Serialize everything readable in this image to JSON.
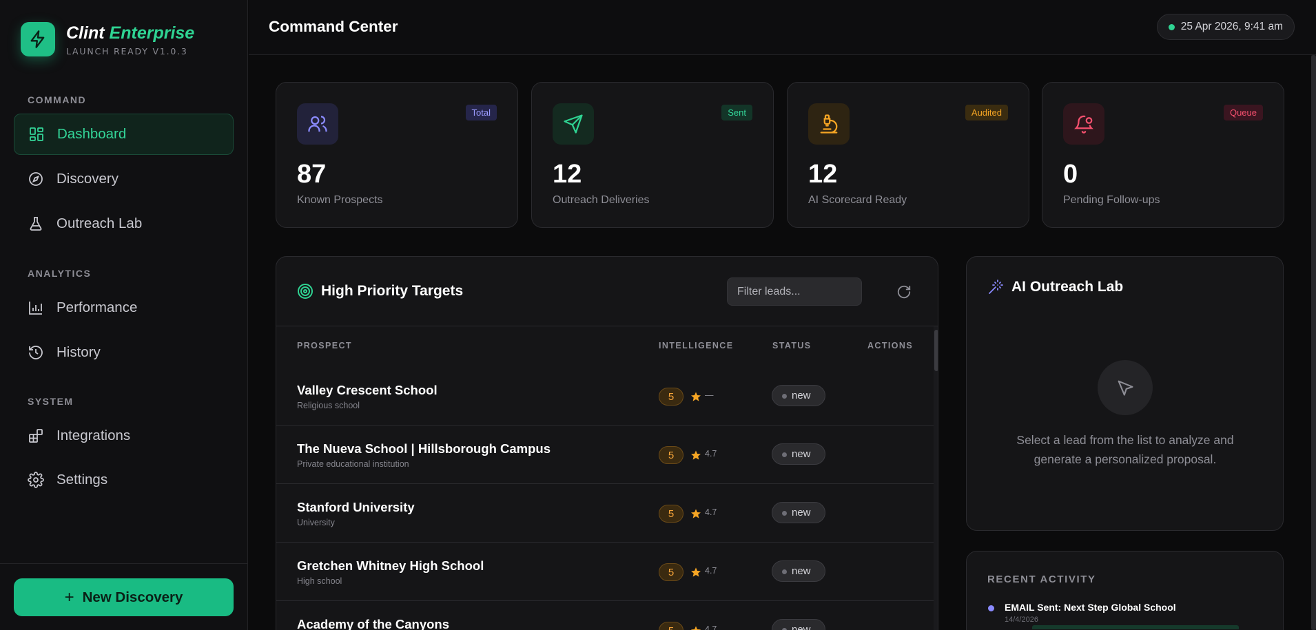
{
  "brand": {
    "name": "Clint",
    "edition": "Enterprise",
    "subtitle": "LAUNCH READY V1.0.3"
  },
  "nav": {
    "sections": [
      {
        "title": "COMMAND",
        "items": [
          {
            "label": "Dashboard",
            "icon": "dashboard-icon",
            "active": true
          },
          {
            "label": "Discovery",
            "icon": "compass-icon"
          },
          {
            "label": "Outreach Lab",
            "icon": "flask-icon"
          }
        ]
      },
      {
        "title": "ANALYTICS",
        "items": [
          {
            "label": "Performance",
            "icon": "bar-chart-icon"
          },
          {
            "label": "History",
            "icon": "history-icon"
          }
        ]
      },
      {
        "title": "SYSTEM",
        "items": [
          {
            "label": "Integrations",
            "icon": "blocks-icon"
          },
          {
            "label": "Settings",
            "icon": "gear-icon"
          }
        ]
      }
    ],
    "new_discovery_label": "New Discovery"
  },
  "header": {
    "title": "Command Center",
    "datetime": "25 Apr 2026, 9:41 am"
  },
  "stats": [
    {
      "value": "87",
      "label": "Known Prospects",
      "tag": "Total",
      "icon": "users-icon",
      "color": "#8b8bff"
    },
    {
      "value": "12",
      "label": "Outreach Deliveries",
      "tag": "Sent",
      "icon": "send-icon",
      "color": "#2fd493"
    },
    {
      "value": "12",
      "label": "AI Scorecard Ready",
      "tag": "Audited",
      "icon": "microscope-icon",
      "color": "#f5a524"
    },
    {
      "value": "0",
      "label": "Pending Follow-ups",
      "tag": "Queue",
      "icon": "bell-icon",
      "color": "#f5506e"
    }
  ],
  "targets": {
    "title": "High Priority Targets",
    "filter_placeholder": "Filter leads...",
    "columns": {
      "prospect": "PROSPECT",
      "intelligence": "INTELLIGENCE",
      "status": "STATUS",
      "actions": "ACTIONS"
    },
    "rows": [
      {
        "name": "Valley Crescent School",
        "type": "Religious school",
        "score": "5",
        "rating": "—",
        "status": "new"
      },
      {
        "name": "The Nueva School | Hillsborough Campus",
        "type": "Private educational institution",
        "score": "5",
        "rating": "4.7",
        "status": "new"
      },
      {
        "name": "Stanford University",
        "type": "University",
        "score": "5",
        "rating": "4.7",
        "status": "new"
      },
      {
        "name": "Gretchen Whitney High School",
        "type": "High school",
        "score": "5",
        "rating": "4.7",
        "status": "new"
      },
      {
        "name": "Academy of the Canyons",
        "type": "",
        "score": "5",
        "rating": "4.7",
        "status": "new"
      }
    ]
  },
  "ai_lab": {
    "title": "AI Outreach Lab",
    "empty_text": "Select a lead from the list to analyze and generate a personalized proposal."
  },
  "recent": {
    "title": "RECENT ACTIVITY",
    "items": [
      {
        "text": "EMAIL Sent: Next Step Global School",
        "date": "14/4/2026"
      }
    ]
  }
}
